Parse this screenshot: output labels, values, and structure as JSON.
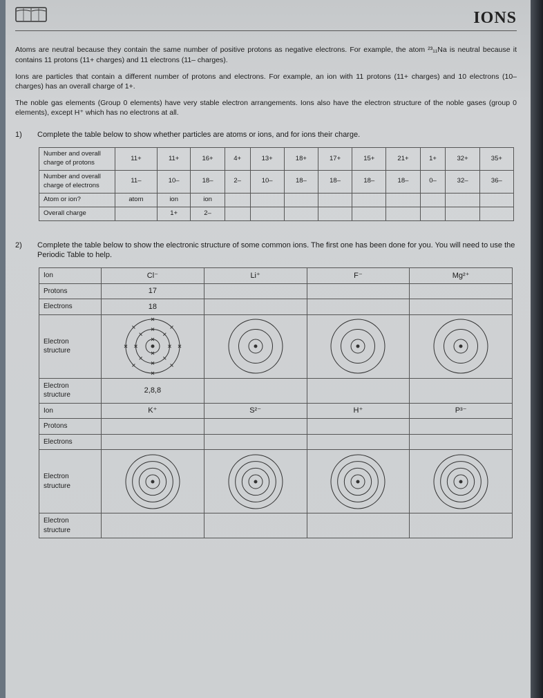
{
  "header": {
    "title": "IONS"
  },
  "intro": {
    "p1": "Atoms are neutral because they contain the same number of positive protons as negative electrons. For example, the atom ²³₁₁Na is neutral because it contains 11 protons (11+ charges) and 11 electrons (11– charges).",
    "p2": "Ions are particles that contain a different number of protons and electrons. For example, an ion with 11 protons (11+ charges) and 10 electrons (10– charges) has an overall charge of 1+.",
    "p3": "The noble gas elements (Group 0 elements) have very stable electron arrangements. Ions also have the electron structure of the noble gases (group 0 elements), except H⁺ which has no electrons at all."
  },
  "q1": {
    "num": "1)",
    "text": "Complete the table below to show whether particles are atoms or ions, and for ions their charge.",
    "rows": {
      "r0": "Number and overall charge of protons",
      "r1": "Number and overall charge of electrons",
      "r2": "Atom or ion?",
      "r3": "Overall charge"
    },
    "protons": [
      "11+",
      "11+",
      "16+",
      "4+",
      "13+",
      "18+",
      "17+",
      "15+",
      "21+",
      "1+",
      "32+",
      "35+"
    ],
    "electrons": [
      "11–",
      "10–",
      "18–",
      "2–",
      "10–",
      "18–",
      "18–",
      "18–",
      "18–",
      "0–",
      "32–",
      "36–"
    ],
    "atom_ion": [
      "atom",
      "ion",
      "ion",
      "",
      "",
      "",
      "",
      "",
      "",
      "",
      "",
      ""
    ],
    "charge": [
      "",
      "1+",
      "2–",
      "",
      "",
      "",
      "",
      "",
      "",
      "",
      "",
      ""
    ]
  },
  "q2": {
    "num": "2)",
    "text": "Complete the table below to show the electronic structure of some common ions. The first one has been done for you. You will need to use the Periodic Table to help.",
    "top": {
      "labels": {
        "ion": "Ion",
        "protons": "Protons",
        "electrons": "Electrons",
        "diagram": "Electron structure",
        "config": "Electron structure"
      },
      "ions": [
        "Cl⁻",
        "Li⁺",
        "F⁻",
        "Mg²⁺"
      ],
      "protons": [
        "17",
        "",
        "",
        ""
      ],
      "electrons": [
        "18",
        "",
        "",
        ""
      ],
      "config": [
        "2,8,8",
        "",
        "",
        ""
      ],
      "shells": [
        {
          "rings": 3,
          "dots": [
            2,
            8,
            8
          ],
          "showDots": true
        },
        {
          "rings": 3,
          "dots": [],
          "showDots": false
        },
        {
          "rings": 3,
          "dots": [],
          "showDots": false
        },
        {
          "rings": 3,
          "dots": [],
          "showDots": false
        }
      ]
    },
    "bot": {
      "labels": {
        "ion": "Ion",
        "protons": "Protons",
        "electrons": "Electrons",
        "diagram": "Electron structure",
        "config": "Electron structure"
      },
      "ions": [
        "K⁺",
        "S²⁻",
        "H⁺",
        "P³⁻"
      ],
      "protons": [
        "",
        "",
        "",
        ""
      ],
      "electrons": [
        "",
        "",
        "",
        ""
      ],
      "config": [
        "",
        "",
        "",
        ""
      ],
      "shells": [
        {
          "rings": 4,
          "dots": [],
          "showDots": false
        },
        {
          "rings": 4,
          "dots": [],
          "showDots": false
        },
        {
          "rings": 4,
          "dots": [],
          "showDots": false
        },
        {
          "rings": 4,
          "dots": [],
          "showDots": false
        }
      ]
    }
  },
  "style": {
    "ringStroke": "#333333"
  }
}
